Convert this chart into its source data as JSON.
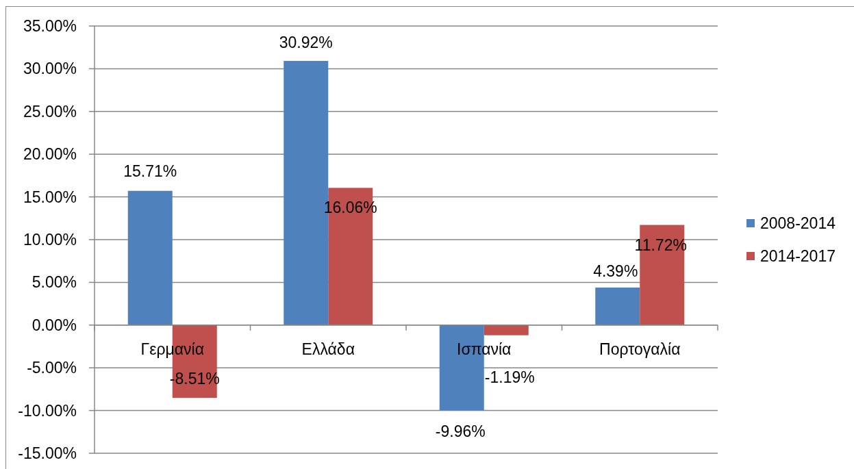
{
  "chart_data": {
    "type": "bar",
    "categories": [
      "Γερμανία",
      "Ελλάδα",
      "Ισπανία",
      "Πορτογαλία"
    ],
    "series": [
      {
        "name": "2008-2014",
        "color": "#4f81bd",
        "values": [
          15.71,
          30.92,
          -9.96,
          4.39
        ],
        "value_labels": [
          "15.71%",
          "30.92%",
          "-9.96%",
          "4.39%"
        ]
      },
      {
        "name": "2014-2017",
        "color": "#c0504d",
        "values": [
          -8.51,
          16.06,
          -1.19,
          11.72
        ],
        "value_labels": [
          "-8.51%",
          "16.06%",
          "-1.19%",
          "11.72%"
        ]
      }
    ],
    "ylim": [
      -15,
      35
    ],
    "yticks": [
      {
        "value": -15,
        "label": "-15.00%"
      },
      {
        "value": -10,
        "label": "-10.00%"
      },
      {
        "value": -5,
        "label": "-5.00%"
      },
      {
        "value": 0,
        "label": "0.00%"
      },
      {
        "value": 5,
        "label": "5.00%"
      },
      {
        "value": 10,
        "label": "10.00%"
      },
      {
        "value": 15,
        "label": "15.00%"
      },
      {
        "value": 20,
        "label": "20.00%"
      },
      {
        "value": 25,
        "label": "25.00%"
      },
      {
        "value": 30,
        "label": "30.00%"
      },
      {
        "value": 35,
        "label": "35.00%"
      }
    ],
    "grid": "y",
    "legend": "right"
  }
}
